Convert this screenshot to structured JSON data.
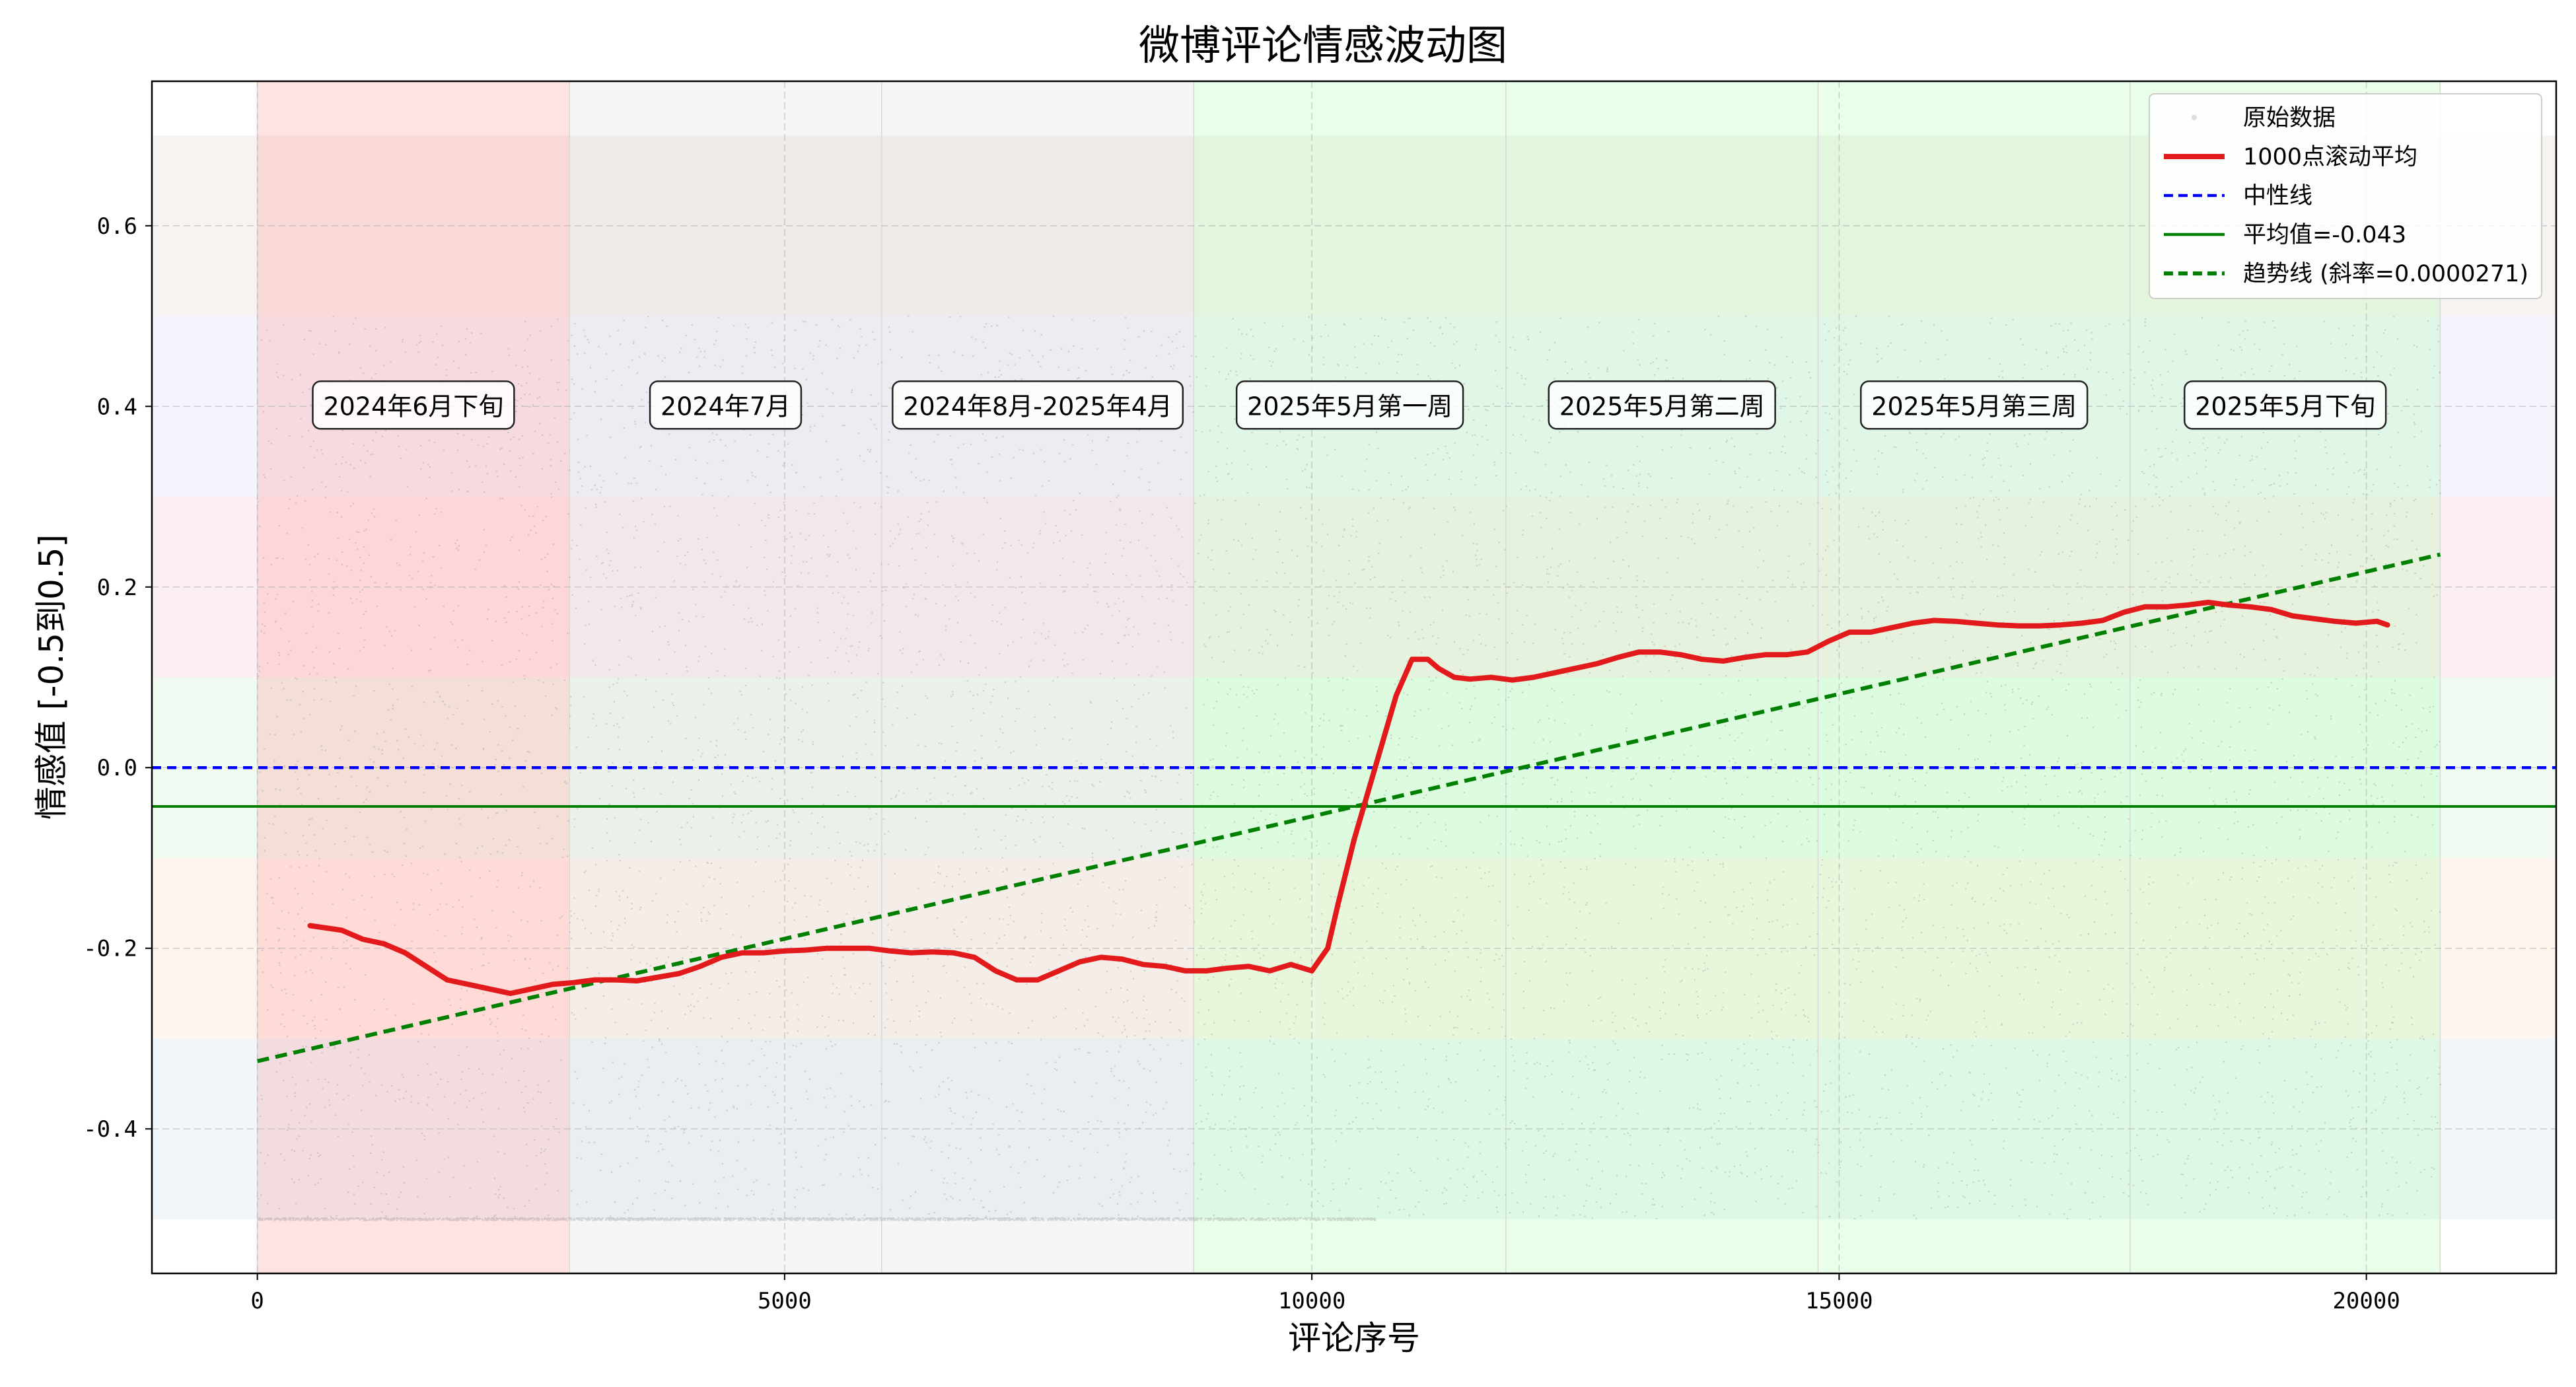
{
  "chart_data": {
    "type": "line",
    "title": "微博评论情感波动图",
    "xlabel": "评论序号",
    "ylabel": "情感值 [-0.5到0.5]",
    "xlim": [
      -1000,
      21800
    ],
    "ylim": [
      -0.56,
      0.76
    ],
    "x_ticks": [
      0,
      5000,
      10000,
      15000,
      20000
    ],
    "x_tick_labels": [
      "0",
      "5000",
      "10000",
      "15000",
      "20000"
    ],
    "y_ticks": [
      -0.4,
      -0.2,
      0.0,
      0.2,
      0.4,
      0.6
    ],
    "y_tick_labels": [
      "-0.4",
      "-0.2",
      "0.0",
      "0.2",
      "0.4",
      "0.6"
    ],
    "grid": true,
    "legend_position": "top-right",
    "legend": [
      {
        "key": "raw",
        "label": "原始数据",
        "style": "scatter",
        "color": "#bbbbbb"
      },
      {
        "key": "rolling",
        "label": "1000点滚动平均",
        "style": "solid",
        "color": "#e31a1c"
      },
      {
        "key": "neutral",
        "label": "中性线",
        "style": "dashed",
        "color": "#0000ff"
      },
      {
        "key": "mean",
        "label": "平均值=-0.043",
        "style": "solid",
        "color": "#008000"
      },
      {
        "key": "trend",
        "label": "趋势线 (斜率=0.0000271)",
        "style": "dashed",
        "color": "#008000"
      }
    ],
    "periods": [
      {
        "label": "2024年6月下旬",
        "start": 0,
        "end": 2960,
        "color": "#ff8080"
      },
      {
        "label": "2024年7月",
        "start": 2960,
        "end": 5920,
        "color": "#d0d0d0"
      },
      {
        "label": "2024年8月-2025年4月",
        "start": 5920,
        "end": 8880,
        "color": "#d0d0d0"
      },
      {
        "label": "2025年5月第一周",
        "start": 8880,
        "end": 11840,
        "color": "#99ff99"
      },
      {
        "label": "2025年5月第二周",
        "start": 11840,
        "end": 14800,
        "color": "#99ff99"
      },
      {
        "label": "2025年5月第三周",
        "start": 14800,
        "end": 17760,
        "color": "#99ff99"
      },
      {
        "label": "2025年5月下旬",
        "start": 17760,
        "end": 20700,
        "color": "#99ff99"
      }
    ],
    "sentiment_bands": [
      {
        "from": 0.5,
        "to": 0.7,
        "color": "#e8ddd5"
      },
      {
        "from": 0.3,
        "to": 0.5,
        "color": "#e0e0f5"
      },
      {
        "from": 0.1,
        "to": 0.3,
        "color": "#f5d0d8"
      },
      {
        "from": -0.1,
        "to": 0.1,
        "color": "#d5f0d8"
      },
      {
        "from": -0.3,
        "to": -0.1,
        "color": "#fde2d0"
      },
      {
        "from": -0.5,
        "to": -0.3,
        "color": "#d5e4f2"
      }
    ],
    "neutral_y": 0.0,
    "mean_y": -0.043,
    "trend": {
      "slope": 2.71e-05,
      "x_start": 0,
      "y_start": -0.325,
      "x_end": 20700,
      "y_end": 0.236
    },
    "series": [
      {
        "name": "1000点滚动平均",
        "x": [
          500,
          800,
          1000,
          1200,
          1400,
          1600,
          1800,
          2000,
          2200,
          2400,
          2600,
          2800,
          3000,
          3200,
          3400,
          3600,
          3800,
          4000,
          4200,
          4400,
          4600,
          4800,
          5000,
          5200,
          5400,
          5600,
          5800,
          6000,
          6200,
          6400,
          6600,
          6800,
          7000,
          7200,
          7400,
          7600,
          7800,
          8000,
          8200,
          8400,
          8600,
          8800,
          9000,
          9200,
          9400,
          9600,
          9800,
          10000,
          10150,
          10250,
          10400,
          10550,
          10650,
          10800,
          10950,
          11100,
          11200,
          11350,
          11500,
          11700,
          11900,
          12100,
          12300,
          12500,
          12700,
          12900,
          13100,
          13300,
          13500,
          13700,
          13900,
          14100,
          14300,
          14500,
          14700,
          14900,
          15100,
          15300,
          15500,
          15700,
          15900,
          16100,
          16300,
          16500,
          16700,
          16900,
          17100,
          17300,
          17500,
          17700,
          17900,
          18100,
          18300,
          18500,
          18700,
          18900,
          19100,
          19300,
          19500,
          19700,
          19900,
          20100,
          20200
        ],
        "values": [
          -0.175,
          -0.18,
          -0.19,
          -0.195,
          -0.205,
          -0.22,
          -0.235,
          -0.24,
          -0.245,
          -0.25,
          -0.245,
          -0.24,
          -0.238,
          -0.235,
          -0.235,
          -0.236,
          -0.232,
          -0.228,
          -0.22,
          -0.21,
          -0.205,
          -0.205,
          -0.203,
          -0.202,
          -0.2,
          -0.2,
          -0.2,
          -0.203,
          -0.205,
          -0.204,
          -0.205,
          -0.21,
          -0.225,
          -0.235,
          -0.235,
          -0.225,
          -0.215,
          -0.21,
          -0.212,
          -0.218,
          -0.22,
          -0.225,
          -0.225,
          -0.222,
          -0.22,
          -0.225,
          -0.218,
          -0.225,
          -0.2,
          -0.15,
          -0.08,
          -0.02,
          0.02,
          0.08,
          0.12,
          0.12,
          0.11,
          0.1,
          0.098,
          0.1,
          0.097,
          0.1,
          0.105,
          0.11,
          0.115,
          0.122,
          0.128,
          0.128,
          0.125,
          0.12,
          0.118,
          0.122,
          0.125,
          0.125,
          0.128,
          0.14,
          0.15,
          0.15,
          0.155,
          0.16,
          0.163,
          0.162,
          0.16,
          0.158,
          0.157,
          0.157,
          0.158,
          0.16,
          0.163,
          0.172,
          0.178,
          0.178,
          0.18,
          0.183,
          0.18,
          0.178,
          0.175,
          0.168,
          0.165,
          0.162,
          0.16,
          0.162,
          0.158
        ]
      }
    ]
  }
}
